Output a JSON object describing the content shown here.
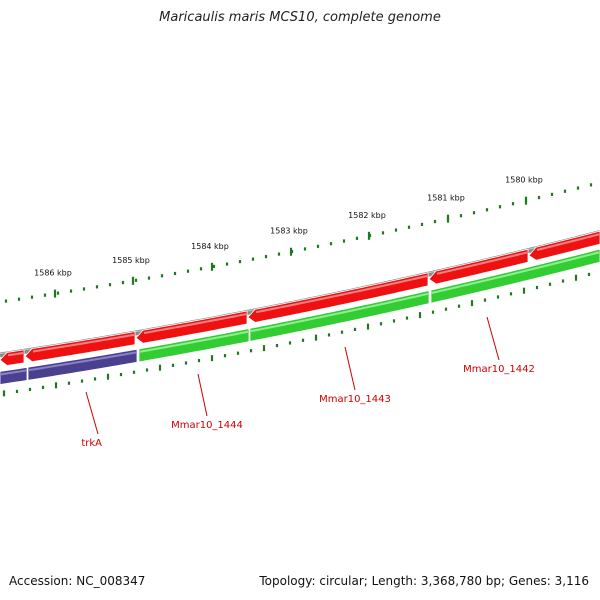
{
  "title": "Maricaulis maris MCS10, complete genome",
  "footer": {
    "accession": "Accession: NC_008347",
    "summary": "Topology: circular; Length: 3,368,780 bp; Genes: 3,116"
  },
  "colors": {
    "backbone": "#8a8a8a",
    "reverse_gene": "#ee1111",
    "forward_gene": "#33cc33",
    "named_gene": "#4a4090",
    "tick": "#1f7a1f",
    "gene_label": "#cc0000"
  },
  "scale": {
    "outer_ticks": [
      {
        "label": "1586 kbp"
      },
      {
        "label": "1585 kbp"
      },
      {
        "label": "1584 kbp"
      },
      {
        "label": "1583 kbp"
      },
      {
        "label": "1582 kbp"
      },
      {
        "label": "1581 kbp"
      },
      {
        "label": "1580 kbp"
      }
    ]
  },
  "gene_labels": [
    {
      "name": "trkA"
    },
    {
      "name": "Mmar10_1444"
    },
    {
      "name": "Mmar10_1443"
    },
    {
      "name": "Mmar10_1442"
    }
  ]
}
